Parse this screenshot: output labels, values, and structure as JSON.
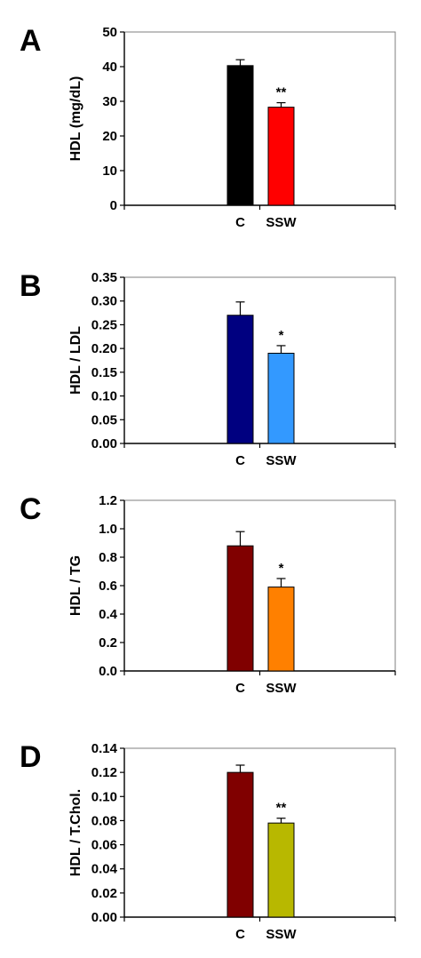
{
  "chart_data": [
    {
      "type": "bar",
      "panel_label": "A",
      "ylabel": "HDL (mg/dL)",
      "categories": [
        "C",
        "SSW"
      ],
      "values": [
        40.3,
        28.3
      ],
      "errors": [
        1.7,
        1.3
      ],
      "colors": [
        "#000000",
        "#ff0000"
      ],
      "significance": [
        "",
        "**"
      ],
      "ylim": [
        0,
        50
      ],
      "yticks": [
        0,
        10,
        20,
        30,
        40,
        50
      ],
      "ytick_labels": [
        "0",
        "10",
        "20",
        "30",
        "40",
        "50"
      ],
      "grid": false
    },
    {
      "type": "bar",
      "panel_label": "B",
      "ylabel": "HDL / LDL",
      "categories": [
        "C",
        "SSW"
      ],
      "values": [
        0.27,
        0.19
      ],
      "errors": [
        0.028,
        0.016
      ],
      "colors": [
        "#000080",
        "#3399ff"
      ],
      "significance": [
        "",
        "*"
      ],
      "ylim": [
        0,
        0.35
      ],
      "yticks": [
        0,
        0.05,
        0.1,
        0.15,
        0.2,
        0.25,
        0.3,
        0.35
      ],
      "ytick_labels": [
        "0.00",
        "0.05",
        "0.10",
        "0.15",
        "0.20",
        "0.25",
        "0.30",
        "0.35"
      ],
      "grid": false
    },
    {
      "type": "bar",
      "panel_label": "C",
      "ylabel": "HDL / TG",
      "categories": [
        "C",
        "SSW"
      ],
      "values": [
        0.88,
        0.59
      ],
      "errors": [
        0.1,
        0.06
      ],
      "colors": [
        "#800000",
        "#ff8000"
      ],
      "significance": [
        "",
        "*"
      ],
      "ylim": [
        0,
        1.2
      ],
      "yticks": [
        0,
        0.2,
        0.4,
        0.6,
        0.8,
        1.0,
        1.2
      ],
      "ytick_labels": [
        "0.0",
        "0.2",
        "0.4",
        "0.6",
        "0.8",
        "1.0",
        "1.2"
      ],
      "grid": false
    },
    {
      "type": "bar",
      "panel_label": "D",
      "ylabel": "HDL / T.Chol.",
      "categories": [
        "C",
        "SSW"
      ],
      "values": [
        0.12,
        0.078
      ],
      "errors": [
        0.006,
        0.004
      ],
      "colors": [
        "#800000",
        "#b8b800"
      ],
      "significance": [
        "",
        "**"
      ],
      "ylim": [
        0,
        0.14
      ],
      "yticks": [
        0,
        0.02,
        0.04,
        0.06,
        0.08,
        0.1,
        0.12,
        0.14
      ],
      "ytick_labels": [
        "0.00",
        "0.02",
        "0.04",
        "0.06",
        "0.08",
        "0.10",
        "0.12",
        "0.14"
      ],
      "grid": false
    }
  ]
}
